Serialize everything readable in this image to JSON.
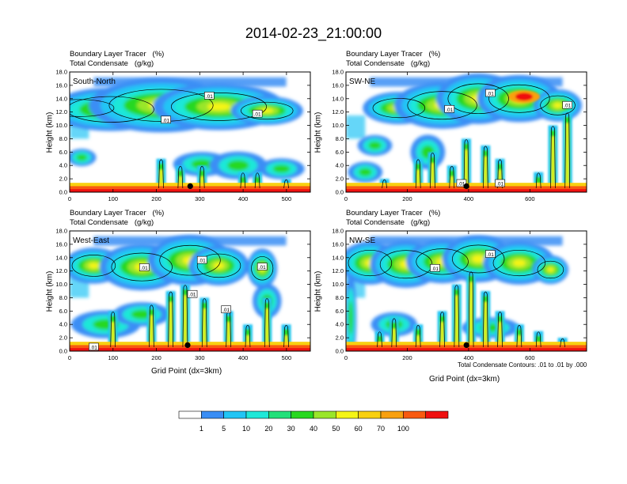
{
  "title": "2014-02-23_21:00:00",
  "chart_data": [
    {
      "type": "heatmap",
      "panel": "South-North",
      "header_line1": "Boundary Layer Tracer   (%)",
      "header_line2": "Total Condensate   (g/kg)",
      "ylabel": "Height (km)",
      "xlabel": "",
      "xlim": [
        0,
        555
      ],
      "ylim": [
        0,
        18
      ],
      "xticks": [
        0,
        100,
        200,
        300,
        400,
        500
      ],
      "yticks": [
        "0.0",
        "2.0",
        "4.0",
        "6.0",
        "8.0",
        "10.0",
        "12.0",
        "14.0",
        "16.0",
        "18.0"
      ],
      "contour_labels": [
        ".01",
        ".01",
        ".01"
      ],
      "marker_x": 278
    },
    {
      "type": "heatmap",
      "panel": "SW-NE",
      "header_line1": "Boundary Layer Tracer   (%)",
      "header_line2": "Total Condensate   (g/kg)",
      "ylabel": "Height (km)",
      "xlabel": "",
      "xlim": [
        0,
        785
      ],
      "ylim": [
        0,
        18
      ],
      "xticks": [
        0,
        200,
        400,
        600
      ],
      "yticks": [
        "0.0",
        "2.0",
        "4.0",
        "6.0",
        "8.0",
        "10.0",
        "12.0",
        "14.0",
        "16.0",
        "18.0"
      ],
      "contour_labels": [
        ".01",
        ".01",
        ".01",
        ".01",
        ".01"
      ],
      "marker_x": 393
    },
    {
      "type": "heatmap",
      "panel": "West-East",
      "header_line1": "Boundary Layer Tracer   (%)",
      "header_line2": "Total Condensate   (g/kg)",
      "ylabel": "Height (km)",
      "xlabel": "Grid Point (dx=3km)",
      "xlim": [
        0,
        555
      ],
      "ylim": [
        0,
        18
      ],
      "xticks": [
        0,
        100,
        200,
        300,
        400,
        500
      ],
      "yticks": [
        "0.0",
        "2.0",
        "4.0",
        "6.0",
        "8.0",
        "10.0",
        "12.0",
        "14.0",
        "16.0",
        "18.0"
      ],
      "contour_labels": [
        ".01",
        ".01",
        ".01",
        ".01",
        ".01",
        ".01"
      ],
      "marker_x": 272
    },
    {
      "type": "heatmap",
      "panel": "NW-SE",
      "header_line1": "Boundary Layer Tracer   (%)",
      "header_line2": "Total Condensate   (g/kg)",
      "ylabel": "Height (km)",
      "xlabel": "Grid Point (dx=3km)",
      "xlim": [
        0,
        785
      ],
      "ylim": [
        0,
        18
      ],
      "xticks": [
        0,
        200,
        400,
        600
      ],
      "yticks": [
        "0.0",
        "2.0",
        "4.0",
        "6.0",
        "8.0",
        "10.0",
        "12.0",
        "14.0",
        "16.0",
        "18.0"
      ],
      "contour_labels": [
        ".01",
        ".01"
      ],
      "marker_x": 393
    }
  ],
  "contour_note": "Total Condensate Contours: .01 to .01 by .000",
  "colorbar": {
    "levels": [
      "1",
      "5",
      "10",
      "20",
      "30",
      "40",
      "50",
      "60",
      "70",
      "100"
    ],
    "colors": [
      "#ffffff",
      "#3a8ef5",
      "#22c5f5",
      "#1fe8d8",
      "#22e07a",
      "#28d820",
      "#9ae62a",
      "#f5f516",
      "#f8d010",
      "#f8a010",
      "#f85a10",
      "#f01010"
    ]
  }
}
